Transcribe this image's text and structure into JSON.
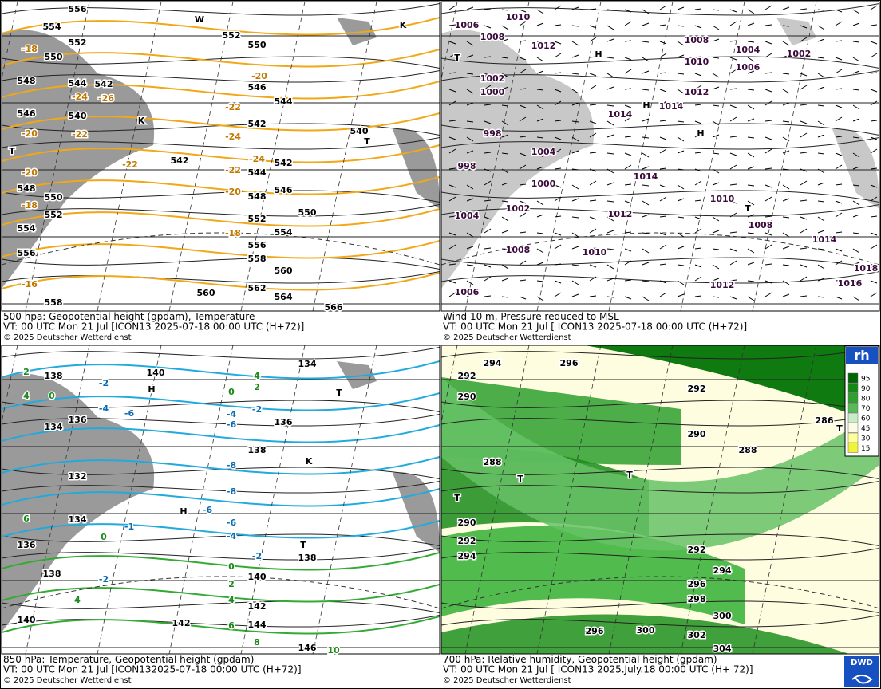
{
  "panels": [
    {
      "caption": [
        "500 hpa: Geopotential height (gpdam), Temperature",
        "VT: 00 UTC Mon  21 Jul [ICON13 2025-07-18 00:00 UTC (H+72)]",
        "© 2025 Deutscher Wetterdienst"
      ],
      "labels": [
        "556",
        "554",
        "552",
        "550",
        "548",
        "546",
        "544",
        "542",
        "540",
        "548",
        "550",
        "552",
        "554",
        "556",
        "558",
        "-18",
        "-20",
        "-20",
        "-18",
        "-16",
        "-24",
        "-26",
        "-22",
        "-22",
        "552",
        "550",
        "546",
        "544",
        "542",
        "-20",
        "-22",
        "-24",
        "-22",
        "-20",
        "-18",
        "550",
        "552",
        "554",
        "556",
        "558",
        "560",
        "562",
        "564",
        "566",
        "560",
        "540",
        "546",
        "548",
        "542",
        "544",
        "542",
        "-24",
        "T",
        "K",
        "T",
        "K",
        "W"
      ]
    },
    {
      "caption": [
        "Wind 10 m, Pressure reduced to MSL",
        "VT: 00 UTC Mon  21 Jul [ ICON13 2025-07-18 00:00 UTC (H+72)]",
        "© 2025 Deutscher Wetterdienst"
      ],
      "labels": [
        "1010",
        "1006",
        "1008",
        "1012",
        "1002",
        "1000",
        "998",
        "998",
        "1004",
        "1000",
        "1002",
        "1004",
        "1008",
        "1006",
        "1014",
        "1014",
        "1012",
        "1010",
        "1008",
        "1004",
        "1006",
        "1002",
        "1014",
        "1012",
        "1010",
        "1010",
        "1008",
        "1014",
        "1018",
        "1016",
        "1012",
        "H",
        "H",
        "T",
        "T",
        "H"
      ]
    },
    {
      "caption": [
        "850 hPa:  Temperature, Geopotential height (gpdam)",
        "VT: 00 UTC Mon  21 Jul [ICON132025-07-18 00:00 UTC (H+72)]",
        "© 2025 Deutscher Wetterdienst"
      ],
      "labels": [
        "138",
        "140",
        "136",
        "134",
        "132",
        "134",
        "136",
        "138",
        "140",
        "142",
        "144",
        "146",
        "142",
        "140",
        "138",
        "138",
        "136",
        "134",
        "-2",
        "-4",
        "-6",
        "-4",
        "-6",
        "-2",
        "-8",
        "-8",
        "-6",
        "-6",
        "-4",
        "-2",
        "-1",
        "-2",
        "0",
        "0",
        "2",
        "4",
        "6",
        "8",
        "10",
        "0",
        "2",
        "4",
        "2",
        "4",
        "6",
        "4",
        "0",
        "H",
        "H",
        "T",
        "T",
        "K"
      ]
    },
    {
      "caption": [
        "700 hPa:  Relative humidity, Geopotential height (gpdam)",
        "VT: 00 UTC Mon  21 Jul [ ICON13  2025.July.18 00:00 UTC (H+ 72)]",
        "© 2025 Deutscher Wetterdienst"
      ],
      "labels": [
        "296",
        "294",
        "292",
        "290",
        "288",
        "290",
        "292",
        "294",
        "292",
        "290",
        "288",
        "286",
        "292",
        "294",
        "296",
        "298",
        "300",
        "300",
        "302",
        "304",
        "296",
        "T",
        "T",
        "T",
        "T"
      ]
    }
  ],
  "legend": {
    "title": "rh",
    "levels": [
      "95",
      "90",
      "80",
      "70",
      "60",
      "45",
      "30",
      "15"
    ]
  },
  "logo": "DWD"
}
